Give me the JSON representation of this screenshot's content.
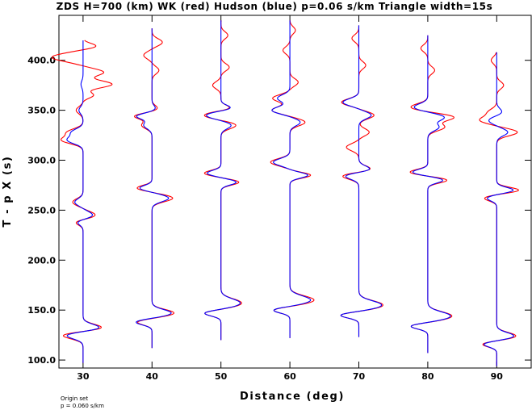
{
  "chart_data": {
    "type": "line",
    "title": "ZDS H=700 (km) WK (red) Hudson (blue) p=0.06 s/km Triangle width=15s",
    "xlabel": "Distance (deg)",
    "ylabel": "T - p X (s)",
    "xlim": [
      26.5,
      95
    ],
    "ylim": [
      92,
      445
    ],
    "xticks": [
      30,
      40,
      50,
      60,
      70,
      80,
      90
    ],
    "yticks": [
      100.0,
      150.0,
      200.0,
      250.0,
      300.0,
      350.0,
      400.0
    ],
    "xtick_labels": [
      "30",
      "40",
      "50",
      "60",
      "70",
      "80",
      "90"
    ],
    "ytick_labels": [
      "100.0",
      "150.0",
      "200.0",
      "250.0",
      "300.0",
      "350.0",
      "400.0"
    ],
    "grid": false,
    "note_lines": [
      "Origin set",
      "p = 0.060 s/km"
    ],
    "colors": {
      "wk": "#ff0000",
      "hudson": "#0000ff",
      "axes": "#000000"
    },
    "amp_scale_deg_per_unit": 1.0,
    "traces": [
      {
        "distance": 30,
        "start": 97,
        "end": 420,
        "wk": [
          [
            125,
            -3.2,
            5
          ],
          [
            132,
            3.0,
            5
          ],
          [
            245,
            1.8,
            5
          ],
          [
            258,
            -1.5,
            5
          ],
          [
            238,
            -1.2,
            4
          ],
          [
            320,
            -3.0,
            5
          ],
          [
            328,
            -2.2,
            5
          ],
          [
            350,
            -1.0,
            5
          ],
          [
            365,
            1.5,
            4
          ],
          [
            376,
            4.2,
            5
          ],
          [
            388,
            3.0,
            5
          ],
          [
            403,
            -4.5,
            6
          ],
          [
            414,
            2.0,
            4
          ]
        ],
        "hudson": [
          [
            125,
            -2.6,
            5
          ],
          [
            132,
            2.6,
            5
          ],
          [
            245,
            1.4,
            5
          ],
          [
            258,
            -1.2,
            5
          ],
          [
            238,
            -0.9,
            4
          ],
          [
            320,
            -2.2,
            5
          ],
          [
            328,
            -1.6,
            5
          ],
          [
            350,
            -0.6,
            5
          ],
          [
            376,
            -0.3,
            5
          ]
        ]
      },
      {
        "distance": 40,
        "start": 112,
        "end": 432,
        "wk": [
          [
            138,
            -2.2,
            4
          ],
          [
            147,
            3.2,
            5
          ],
          [
            262,
            3.0,
            5
          ],
          [
            272,
            -2.2,
            4
          ],
          [
            335,
            -1.5,
            5
          ],
          [
            344,
            -2.5,
            4
          ],
          [
            352,
            0.8,
            4
          ],
          [
            390,
            1.0,
            5
          ],
          [
            405,
            -1.2,
            5
          ],
          [
            418,
            1.5,
            5
          ]
        ],
        "hudson": [
          [
            138,
            -2.4,
            4
          ],
          [
            147,
            2.8,
            5
          ],
          [
            262,
            2.4,
            5
          ],
          [
            272,
            -1.8,
            4
          ],
          [
            335,
            -1.2,
            5
          ],
          [
            344,
            -2.2,
            4
          ],
          [
            352,
            0.5,
            4
          ]
        ]
      },
      {
        "distance": 50,
        "start": 120,
        "end": 440,
        "wk": [
          [
            147,
            -2.5,
            4
          ],
          [
            157,
            3.0,
            6
          ],
          [
            278,
            2.6,
            4
          ],
          [
            287,
            -2.4,
            4
          ],
          [
            335,
            2.2,
            5
          ],
          [
            345,
            -2.5,
            5
          ],
          [
            352,
            1.5,
            4
          ],
          [
            375,
            -1.2,
            5
          ],
          [
            393,
            1.2,
            5
          ],
          [
            425,
            1.0,
            5
          ]
        ],
        "hudson": [
          [
            147,
            -2.5,
            4
          ],
          [
            157,
            2.8,
            6
          ],
          [
            278,
            2.2,
            4
          ],
          [
            287,
            -2.0,
            4
          ],
          [
            335,
            1.5,
            5
          ],
          [
            345,
            -2.2,
            5
          ],
          [
            352,
            1.6,
            4
          ]
        ]
      },
      {
        "distance": 60,
        "start": 122,
        "end": 440,
        "wk": [
          [
            150,
            -2.5,
            4
          ],
          [
            160,
            3.5,
            6
          ],
          [
            285,
            3.0,
            4
          ],
          [
            298,
            -2.8,
            5
          ],
          [
            338,
            2.2,
            5
          ],
          [
            350,
            -2.6,
            5
          ],
          [
            362,
            -2.5,
            5
          ],
          [
            378,
            1.2,
            5
          ],
          [
            410,
            -1.0,
            5
          ],
          [
            430,
            0.8,
            5
          ]
        ],
        "hudson": [
          [
            150,
            -2.5,
            4
          ],
          [
            160,
            3.0,
            6
          ],
          [
            285,
            2.6,
            4
          ],
          [
            298,
            -2.4,
            5
          ],
          [
            338,
            1.5,
            5
          ],
          [
            350,
            -2.6,
            5
          ],
          [
            362,
            -1.8,
            5
          ]
        ]
      },
      {
        "distance": 70,
        "start": 123,
        "end": 435,
        "wk": [
          [
            145,
            -2.8,
            4
          ],
          [
            155,
            3.5,
            6
          ],
          [
            285,
            -3.0,
            5
          ],
          [
            290,
            2.4,
            5
          ],
          [
            313,
            -1.8,
            5
          ],
          [
            328,
            1.5,
            5
          ],
          [
            345,
            2.2,
            5
          ],
          [
            358,
            -2.5,
            5
          ],
          [
            395,
            1.0,
            5
          ],
          [
            422,
            -1.0,
            5
          ]
        ],
        "hudson": [
          [
            145,
            -2.8,
            4
          ],
          [
            155,
            3.3,
            6
          ],
          [
            285,
            -2.5,
            5
          ],
          [
            290,
            2.2,
            5
          ],
          [
            345,
            1.8,
            5
          ],
          [
            358,
            -2.3,
            5
          ]
        ]
      },
      {
        "distance": 80,
        "start": 107,
        "end": 425,
        "wk": [
          [
            134,
            -2.6,
            4
          ],
          [
            144,
            3.5,
            6
          ],
          [
            280,
            2.8,
            4
          ],
          [
            288,
            -2.6,
            4
          ],
          [
            333,
            2.4,
            5
          ],
          [
            343,
            3.8,
            5
          ],
          [
            353,
            -2.5,
            5
          ],
          [
            390,
            1.0,
            5
          ],
          [
            412,
            -1.0,
            5
          ]
        ],
        "hudson": [
          [
            134,
            -2.6,
            4
          ],
          [
            144,
            3.3,
            6
          ],
          [
            280,
            2.2,
            4
          ],
          [
            288,
            -2.2,
            4
          ],
          [
            333,
            1.6,
            5
          ],
          [
            343,
            2.4,
            5
          ],
          [
            353,
            -2.0,
            5
          ]
        ]
      },
      {
        "distance": 90,
        "start": 94,
        "end": 408,
        "wk": [
          [
            116,
            -2.2,
            4
          ],
          [
            124,
            2.8,
            5
          ],
          [
            262,
            -1.8,
            4
          ],
          [
            270,
            3.2,
            4
          ],
          [
            328,
            3.0,
            5
          ],
          [
            340,
            -2.4,
            5
          ],
          [
            348,
            -1.2,
            5
          ],
          [
            375,
            1.0,
            5
          ],
          [
            400,
            -0.8,
            5
          ]
        ],
        "hudson": [
          [
            116,
            -2.0,
            4
          ],
          [
            124,
            2.5,
            5
          ],
          [
            262,
            -1.4,
            4
          ],
          [
            270,
            2.4,
            4
          ],
          [
            328,
            1.6,
            5
          ],
          [
            340,
            -1.2,
            5
          ],
          [
            348,
            0.8,
            5
          ]
        ]
      }
    ]
  }
}
